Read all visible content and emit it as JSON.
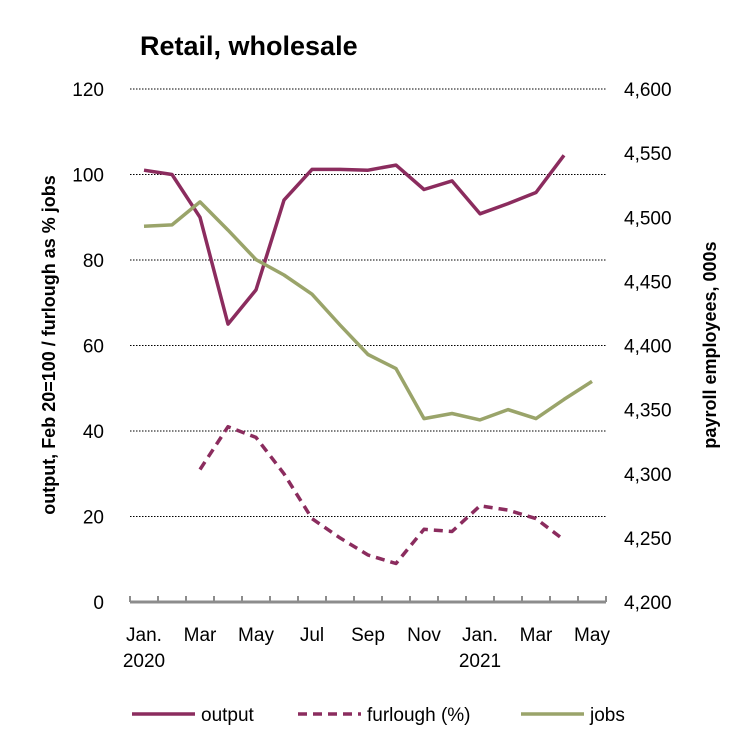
{
  "chart_data": {
    "type": "line",
    "title": "Retail, wholesale",
    "ylabel": "output, Feb 20=100 / furlough as % jobs",
    "y2label": "payroll employees, 000s",
    "ylim": [
      0,
      120
    ],
    "y2lim": [
      4200,
      4600
    ],
    "yticks": [
      "0",
      "20",
      "40",
      "60",
      "80",
      "100",
      "120"
    ],
    "y2ticks": [
      "4,200",
      "4,250",
      "4,300",
      "4,350",
      "4,400",
      "4,450",
      "4,500",
      "4,550",
      "4,600"
    ],
    "x": [
      "2020-01",
      "2020-02",
      "2020-03",
      "2020-04",
      "2020-05",
      "2020-06",
      "2020-07",
      "2020-08",
      "2020-09",
      "2020-10",
      "2020-11",
      "2020-12",
      "2021-01",
      "2021-02",
      "2021-03",
      "2021-04",
      "2021-05"
    ],
    "xtick_labels": [
      {
        "month": "Jan.",
        "year": "2020"
      },
      {
        "month": "Mar",
        "year": ""
      },
      {
        "month": "May",
        "year": ""
      },
      {
        "month": "Jul",
        "year": ""
      },
      {
        "month": "Sep",
        "year": ""
      },
      {
        "month": "Nov",
        "year": ""
      },
      {
        "month": "Jan.",
        "year": "2021"
      },
      {
        "month": "Mar",
        "year": ""
      },
      {
        "month": "May",
        "year": ""
      }
    ],
    "grid": true,
    "legend_position": "bottom",
    "series": [
      {
        "name": "output",
        "axis": "left",
        "style": "solid",
        "color": "#8B2C5E",
        "values": [
          101,
          100,
          90,
          65,
          73,
          94,
          101.2,
          101.2,
          101,
          102.2,
          96.5,
          98.5,
          90.8,
          93.2,
          95.8,
          104.5,
          null
        ]
      },
      {
        "name": "furlough (%)",
        "axis": "left",
        "style": "dashed",
        "color": "#8B2C5E",
        "values": [
          null,
          null,
          31,
          41,
          38.5,
          30,
          19.5,
          15,
          11,
          9,
          17,
          16.5,
          22.5,
          21.5,
          19.5,
          14.5,
          null
        ]
      },
      {
        "name": "jobs",
        "axis": "right",
        "style": "solid",
        "color": "#9AA46A",
        "values": [
          4493,
          4494,
          4512,
          4490,
          4467,
          4455,
          4440,
          4416,
          4393,
          4382,
          4343,
          4347,
          4342,
          4350,
          4343,
          4358,
          4372
        ]
      }
    ]
  }
}
